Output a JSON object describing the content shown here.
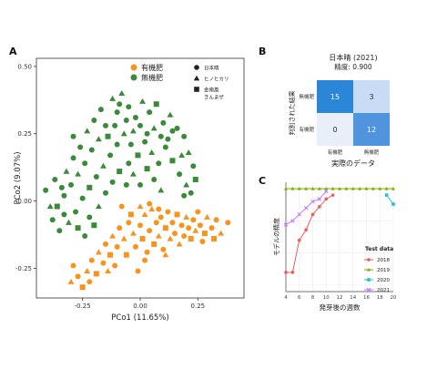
{
  "panels": {
    "a_label": "A",
    "b_label": "B",
    "c_label": "C"
  },
  "chart_data": [
    {
      "type": "scatter",
      "xlabel": "PCo1 (11.65%)",
      "ylabel": "PCo2 (9.07%)",
      "xlim": [
        -0.45,
        0.45
      ],
      "ylim": [
        -0.36,
        0.53
      ],
      "x_ticks": [
        -0.25,
        0.0,
        0.25
      ],
      "x_tick_labels": [
        "-0.25",
        "0.00",
        "0.25"
      ],
      "y_ticks": [
        0.5,
        0.25,
        0.0,
        -0.25
      ],
      "y_tick_labels": [
        "0.50",
        "0.25",
        "0.00",
        "-0.25"
      ],
      "grid": false,
      "legend_fertilizer": [
        {
          "name": "有機肥",
          "color": "#f7941d"
        },
        {
          "name": "無機肥",
          "color": "#3a8a3a"
        }
      ],
      "legend_shapes": [
        {
          "name": "日本晴",
          "shape": "circle"
        },
        {
          "name": "ヒノヒカリ",
          "shape": "triangle"
        },
        {
          "name": "金南風\nきんまぜ",
          "shape": "square"
        }
      ],
      "series": [
        {
          "name": "有機肥",
          "color": "#f7941d",
          "points": [
            [
              -0.3,
              -0.3,
              "t"
            ],
            [
              -0.27,
              -0.28,
              "c"
            ],
            [
              -0.25,
              -0.32,
              "s"
            ],
            [
              -0.29,
              -0.24,
              "c"
            ],
            [
              -0.23,
              -0.26,
              "t"
            ],
            [
              -0.21,
              -0.22,
              "c"
            ],
            [
              -0.19,
              -0.27,
              "s"
            ],
            [
              -0.18,
              -0.19,
              "t"
            ],
            [
              -0.16,
              -0.23,
              "c"
            ],
            [
              -0.15,
              -0.16,
              "c"
            ],
            [
              -0.13,
              -0.2,
              "s"
            ],
            [
              -0.12,
              -0.13,
              "t"
            ],
            [
              -0.1,
              -0.17,
              "c"
            ],
            [
              -0.09,
              -0.1,
              "c"
            ],
            [
              -0.07,
              -0.14,
              "t"
            ],
            [
              -0.06,
              -0.2,
              "s"
            ],
            [
              -0.05,
              -0.08,
              "c"
            ],
            [
              -0.03,
              -0.12,
              "t"
            ],
            [
              -0.02,
              -0.17,
              "c"
            ],
            [
              0.0,
              -0.09,
              "c"
            ],
            [
              0.01,
              -0.14,
              "s"
            ],
            [
              0.02,
              -0.05,
              "t"
            ],
            [
              0.03,
              -0.19,
              "c"
            ],
            [
              0.04,
              -0.11,
              "c"
            ],
            [
              0.05,
              -0.03,
              "t"
            ],
            [
              0.06,
              -0.16,
              "s"
            ],
            [
              0.07,
              -0.08,
              "c"
            ],
            [
              0.08,
              -0.13,
              "t"
            ],
            [
              0.09,
              -0.06,
              "c"
            ],
            [
              0.1,
              -0.18,
              "c"
            ],
            [
              0.11,
              -0.1,
              "s"
            ],
            [
              0.12,
              -0.04,
              "c"
            ],
            [
              0.13,
              -0.14,
              "t"
            ],
            [
              0.14,
              -0.08,
              "c"
            ],
            [
              0.15,
              -0.12,
              "c"
            ],
            [
              0.16,
              -0.05,
              "s"
            ],
            [
              0.17,
              -0.16,
              "t"
            ],
            [
              0.18,
              -0.09,
              "c"
            ],
            [
              0.19,
              -0.13,
              "c"
            ],
            [
              0.2,
              -0.06,
              "t"
            ],
            [
              0.21,
              -0.1,
              "c"
            ],
            [
              0.22,
              -0.14,
              "s"
            ],
            [
              0.23,
              -0.07,
              "c"
            ],
            [
              0.24,
              -0.11,
              "t"
            ],
            [
              0.25,
              -0.04,
              "c"
            ],
            [
              0.26,
              -0.09,
              "c"
            ],
            [
              0.28,
              -0.12,
              "s"
            ],
            [
              0.29,
              -0.06,
              "t"
            ],
            [
              0.31,
              -0.1,
              "c"
            ],
            [
              0.33,
              -0.07,
              "c"
            ],
            [
              0.35,
              -0.12,
              "t"
            ],
            [
              0.38,
              -0.08,
              "c"
            ],
            [
              -0.08,
              -0.02,
              "c"
            ],
            [
              -0.04,
              -0.05,
              "s"
            ],
            [
              0.0,
              -0.02,
              "t"
            ],
            [
              0.04,
              -0.01,
              "c"
            ],
            [
              0.08,
              -0.03,
              "c"
            ],
            [
              -0.22,
              -0.3,
              "c"
            ],
            [
              -0.14,
              -0.26,
              "t"
            ],
            [
              -0.11,
              -0.24,
              "c"
            ],
            [
              0.02,
              -0.22,
              "c"
            ],
            [
              0.11,
              -0.2,
              "t"
            ],
            [
              0.27,
              -0.15,
              "c"
            ],
            [
              0.32,
              -0.14,
              "s"
            ],
            [
              -0.01,
              -0.26,
              "c"
            ]
          ]
        },
        {
          "name": "無機肥",
          "color": "#3a8a3a",
          "points": [
            [
              -0.12,
              0.38,
              "t"
            ],
            [
              -0.1,
              0.33,
              "c"
            ],
            [
              -0.08,
              0.4,
              "t"
            ],
            [
              -0.05,
              0.35,
              "c"
            ],
            [
              -0.02,
              0.31,
              "c"
            ],
            [
              0.01,
              0.37,
              "t"
            ],
            [
              0.04,
              0.33,
              "c"
            ],
            [
              0.07,
              0.36,
              "s"
            ],
            [
              0.1,
              0.29,
              "c"
            ],
            [
              0.13,
              0.32,
              "t"
            ],
            [
              0.16,
              0.27,
              "c"
            ],
            [
              0.19,
              0.24,
              "c"
            ],
            [
              0.21,
              0.18,
              "t"
            ],
            [
              0.23,
              0.13,
              "c"
            ],
            [
              0.24,
              0.08,
              "s"
            ],
            [
              0.22,
              0.03,
              "c"
            ],
            [
              0.2,
              0.06,
              "t"
            ],
            [
              -0.15,
              0.28,
              "c"
            ],
            [
              -0.18,
              0.23,
              "t"
            ],
            [
              -0.21,
              0.19,
              "c"
            ],
            [
              -0.24,
              0.14,
              "c"
            ],
            [
              -0.27,
              0.1,
              "t"
            ],
            [
              -0.3,
              0.06,
              "c"
            ],
            [
              -0.33,
              0.02,
              "c"
            ],
            [
              -0.36,
              -0.02,
              "s"
            ],
            [
              -0.38,
              -0.07,
              "c"
            ],
            [
              -0.35,
              -0.11,
              "c"
            ],
            [
              -0.31,
              -0.08,
              "t"
            ],
            [
              -0.28,
              -0.04,
              "c"
            ],
            [
              -0.25,
              0.01,
              "c"
            ],
            [
              -0.22,
              0.05,
              "s"
            ],
            [
              -0.19,
              0.09,
              "c"
            ],
            [
              -0.16,
              0.13,
              "t"
            ],
            [
              -0.13,
              0.17,
              "c"
            ],
            [
              -0.1,
              0.21,
              "c"
            ],
            [
              -0.07,
              0.25,
              "t"
            ],
            [
              -0.04,
              0.21,
              "c"
            ],
            [
              -0.01,
              0.17,
              "s"
            ],
            [
              0.02,
              0.22,
              "c"
            ],
            [
              0.05,
              0.18,
              "t"
            ],
            [
              0.08,
              0.14,
              "c"
            ],
            [
              0.11,
              0.2,
              "c"
            ],
            [
              0.14,
              0.15,
              "s"
            ],
            [
              0.17,
              0.1,
              "c"
            ],
            [
              0.18,
              0.17,
              "t"
            ],
            [
              -0.29,
              0.16,
              "c"
            ],
            [
              -0.32,
              0.11,
              "t"
            ],
            [
              -0.34,
              0.05,
              "c"
            ],
            [
              -0.26,
              0.2,
              "c"
            ],
            [
              -0.23,
              0.26,
              "t"
            ],
            [
              -0.2,
              0.3,
              "c"
            ],
            [
              -0.17,
              0.34,
              "c"
            ],
            [
              -0.14,
              0.24,
              "s"
            ],
            [
              -0.11,
              0.28,
              "c"
            ],
            [
              -0.06,
              0.3,
              "c"
            ],
            [
              -0.03,
              0.26,
              "t"
            ],
            [
              0.0,
              0.28,
              "c"
            ],
            [
              0.03,
              0.25,
              "c"
            ],
            [
              0.06,
              0.27,
              "t"
            ],
            [
              0.09,
              0.24,
              "c"
            ],
            [
              0.12,
              0.23,
              "c"
            ],
            [
              -0.37,
              0.08,
              "c"
            ],
            [
              -0.39,
              -0.02,
              "t"
            ],
            [
              -0.33,
              -0.05,
              "c"
            ],
            [
              -0.27,
              -0.1,
              "s"
            ],
            [
              -0.22,
              -0.06,
              "c"
            ],
            [
              -0.18,
              -0.02,
              "t"
            ],
            [
              -0.15,
              0.03,
              "c"
            ],
            [
              -0.12,
              0.07,
              "c"
            ],
            [
              -0.09,
              0.11,
              "s"
            ],
            [
              -0.06,
              0.06,
              "c"
            ],
            [
              -0.03,
              0.1,
              "t"
            ],
            [
              0.0,
              0.06,
              "c"
            ],
            [
              0.03,
              0.12,
              "s"
            ],
            [
              0.06,
              0.08,
              "c"
            ],
            [
              0.09,
              0.04,
              "t"
            ],
            [
              -0.24,
              -0.13,
              "c"
            ],
            [
              -0.2,
              -0.09,
              "s"
            ],
            [
              -0.29,
              0.24,
              "c"
            ],
            [
              -0.09,
              0.36,
              "c"
            ],
            [
              0.14,
              0.26,
              "c"
            ],
            [
              0.19,
              0.02,
              "c"
            ],
            [
              -0.05,
              0.14,
              "c"
            ],
            [
              -0.41,
              0.04,
              "c"
            ]
          ]
        }
      ]
    },
    {
      "type": "heatmap",
      "title": "日本晴 (2021)",
      "subtitle": "精度: 0.900",
      "xlabel": "実際のデータ",
      "ylabel": "判別された結果",
      "x_categories": [
        "有機肥",
        "無機肥"
      ],
      "y_categories": [
        "無機肥",
        "有機肥"
      ],
      "cells": [
        [
          15,
          3
        ],
        [
          0,
          12
        ]
      ],
      "colors": [
        [
          "#2b86d8",
          "#c9dcf5"
        ],
        [
          "#e8eff9",
          "#4f94dd"
        ]
      ]
    },
    {
      "type": "line",
      "xlabel": "発芽後の週数",
      "ylabel": "モデルの精度",
      "xlim": [
        4,
        20
      ],
      "ylim": [
        0.2,
        1.05
      ],
      "x_ticks": [
        4,
        6,
        8,
        10,
        12,
        14,
        16,
        18,
        20
      ],
      "legend_title": "Test data",
      "series": [
        {
          "name": "2018",
          "color": "#f05a5a",
          "marker": "c",
          "x": [
            4,
            5,
            6,
            7,
            8,
            9,
            10,
            11
          ],
          "y": [
            0.35,
            0.35,
            0.6,
            0.68,
            0.8,
            0.86,
            0.92,
            0.95
          ]
        },
        {
          "name": "2019",
          "color": "#7cae00",
          "marker": "t",
          "x": [
            4,
            5,
            6,
            7,
            8,
            9,
            10,
            11,
            12,
            13,
            14,
            15,
            16,
            17,
            18,
            19,
            20
          ],
          "y": [
            1.0,
            1.0,
            1.0,
            1.0,
            1.0,
            1.0,
            1.0,
            1.0,
            1.0,
            1.0,
            1.0,
            1.0,
            1.0,
            1.0,
            1.0,
            1.0,
            1.0
          ]
        },
        {
          "name": "2020",
          "color": "#22c3c3",
          "marker": "s",
          "x": [
            19,
            20
          ],
          "y": [
            0.95,
            0.88
          ]
        },
        {
          "name": "2021",
          "color": "#c77cff",
          "marker": "x",
          "x": [
            4,
            5,
            6,
            7,
            8,
            9,
            10
          ],
          "y": [
            0.72,
            0.75,
            0.8,
            0.85,
            0.9,
            0.92,
            0.98
          ]
        }
      ]
    }
  ]
}
